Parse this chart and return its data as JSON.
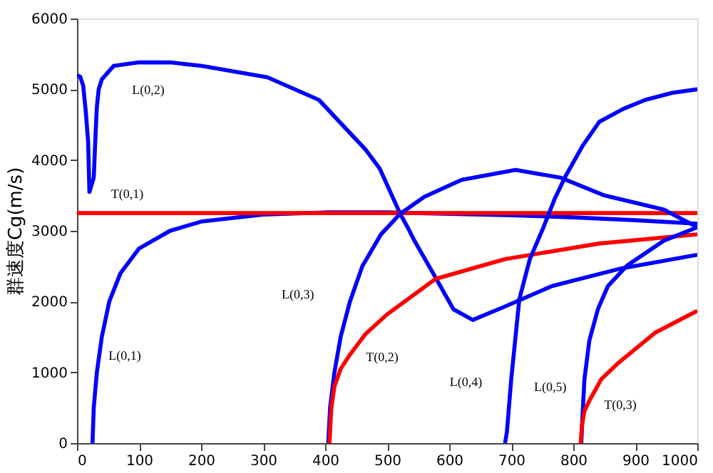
{
  "chart_data": {
    "type": "line",
    "ylabel": "群速度Cg(m/s)",
    "xlim": [
      0,
      1000
    ],
    "ylim": [
      0,
      6000
    ],
    "xticks": [
      0,
      100,
      200,
      300,
      400,
      500,
      600,
      700,
      800,
      900,
      1000
    ],
    "yticks": [
      0,
      1000,
      2000,
      3000,
      4000,
      5000,
      6000
    ],
    "line_style": "solid",
    "series": [
      {
        "color": "#0000ff",
        "x": [
          0,
          5,
          10,
          14,
          18,
          20,
          27,
          30,
          32,
          35,
          40,
          59,
          100,
          150,
          201,
          307,
          390,
          465,
          488,
          521,
          533,
          544,
          578,
          607,
          638,
          690,
          766,
          878,
          1000
        ],
        "values": [
          5200,
          5180,
          5050,
          4700,
          4250,
          3550,
          3750,
          4380,
          4750,
          5000,
          5140,
          5330,
          5380,
          5380,
          5330,
          5170,
          4850,
          4150,
          3880,
          3240,
          3050,
          2860,
          2340,
          1890,
          1740,
          1930,
          2220,
          2470,
          2660
        ]
      },
      {
        "color": "#0000ff",
        "x": [
          25,
          27,
          32,
          40,
          52,
          70,
          100,
          150,
          200,
          300,
          400,
          500,
          600,
          700,
          800,
          900,
          1000
        ],
        "values": [
          0,
          500,
          1000,
          1500,
          2000,
          2400,
          2750,
          3000,
          3130,
          3230,
          3260,
          3260,
          3240,
          3220,
          3190,
          3150,
          3100
        ]
      },
      {
        "color": "#ff0000",
        "x": [
          0,
          1000
        ],
        "values": [
          3250,
          3250
        ]
      },
      {
        "color": "#0000ff",
        "x": [
          405,
          408,
          415,
          425,
          440,
          460,
          490,
          521,
          560,
          620,
          707,
          780,
          850,
          946,
          1000
        ],
        "values": [
          0,
          500,
          1000,
          1500,
          2000,
          2500,
          2950,
          3240,
          3480,
          3720,
          3860,
          3750,
          3500,
          3300,
          3050
        ]
      },
      {
        "color": "#ff0000",
        "x": [
          407,
          410,
          415,
          425,
          440,
          465,
          500,
          578,
          690,
          842,
          1000
        ],
        "values": [
          0,
          500,
          800,
          1050,
          1250,
          1540,
          1820,
          2320,
          2600,
          2820,
          2950
        ]
      },
      {
        "color": "#0000ff",
        "x": [
          690,
          693,
          700,
          713,
          730,
          752,
          770,
          788,
          815,
          842,
          880,
          916,
          960,
          1000
        ],
        "values": [
          0,
          150,
          900,
          2030,
          2600,
          3050,
          3450,
          3780,
          4200,
          4540,
          4720,
          4850,
          4950,
          5000
        ]
      },
      {
        "color": "#0000ff",
        "x": [
          813,
          815,
          818,
          826,
          840,
          856,
          887,
          946,
          1000
        ],
        "values": [
          0,
          400,
          900,
          1450,
          1900,
          2220,
          2510,
          2860,
          3050
        ]
      },
      {
        "color": "#ff0000",
        "x": [
          812,
          814,
          818,
          826,
          845,
          871,
          932,
          1000
        ],
        "values": [
          0,
          250,
          450,
          600,
          900,
          1120,
          1560,
          1870
        ]
      }
    ],
    "annotations": [
      "L(0,2)",
      "T(0,1)",
      "L(0,1)",
      "L(0,3)",
      "T(0,2)",
      "L(0,4)",
      "L(0,5)",
      "T(0,3)"
    ]
  }
}
